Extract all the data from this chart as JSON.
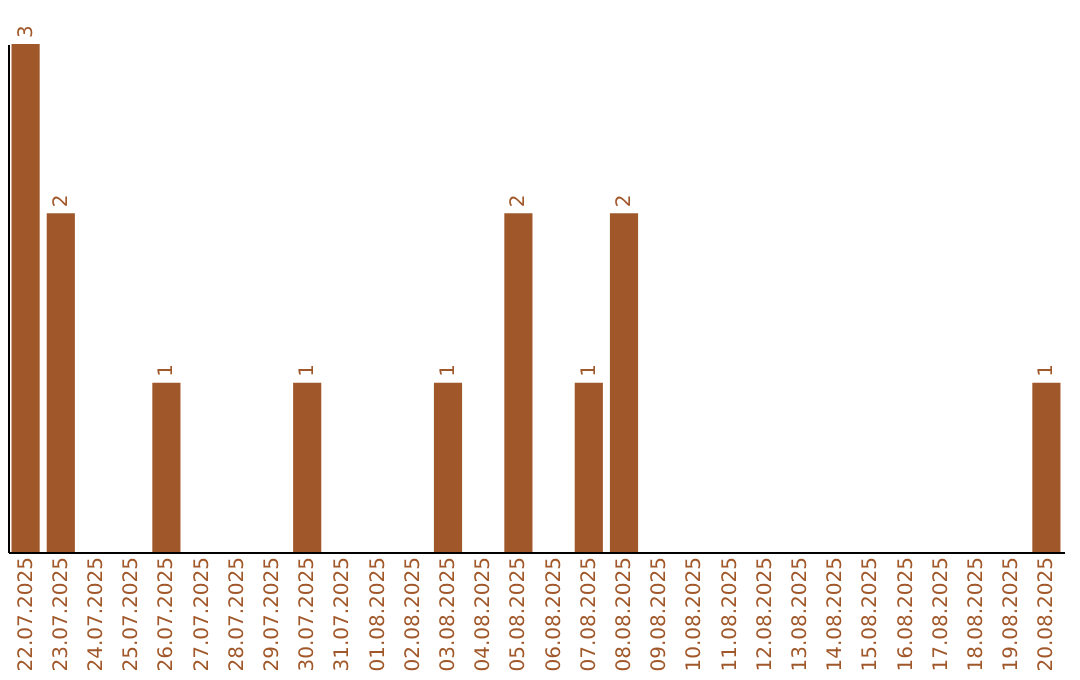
{
  "chart_data": {
    "type": "bar",
    "categories": [
      "22.07.2025",
      "23.07.2025",
      "24.07.2025",
      "25.07.2025",
      "26.07.2025",
      "27.07.2025",
      "28.07.2025",
      "29.07.2025",
      "30.07.2025",
      "31.07.2025",
      "01.08.2025",
      "02.08.2025",
      "03.08.2025",
      "04.08.2025",
      "05.08.2025",
      "06.08.2025",
      "07.08.2025",
      "08.08.2025",
      "09.08.2025",
      "10.08.2025",
      "11.08.2025",
      "12.08.2025",
      "13.08.2025",
      "14.08.2025",
      "15.08.2025",
      "16.08.2025",
      "17.08.2025",
      "18.08.2025",
      "19.08.2025",
      "20.08.2025"
    ],
    "values": [
      3,
      2,
      0,
      0,
      1,
      0,
      0,
      0,
      1,
      0,
      0,
      0,
      1,
      0,
      2,
      0,
      1,
      2,
      0,
      0,
      0,
      0,
      0,
      0,
      0,
      0,
      0,
      0,
      0,
      1
    ],
    "value_labels": [
      "3",
      "2",
      null,
      null,
      "1",
      null,
      null,
      null,
      "1",
      null,
      null,
      null,
      "1",
      null,
      "2",
      null,
      "1",
      "2",
      null,
      null,
      null,
      null,
      null,
      null,
      null,
      null,
      null,
      null,
      null,
      "1"
    ],
    "color": "#a0582a",
    "grid": false
  }
}
